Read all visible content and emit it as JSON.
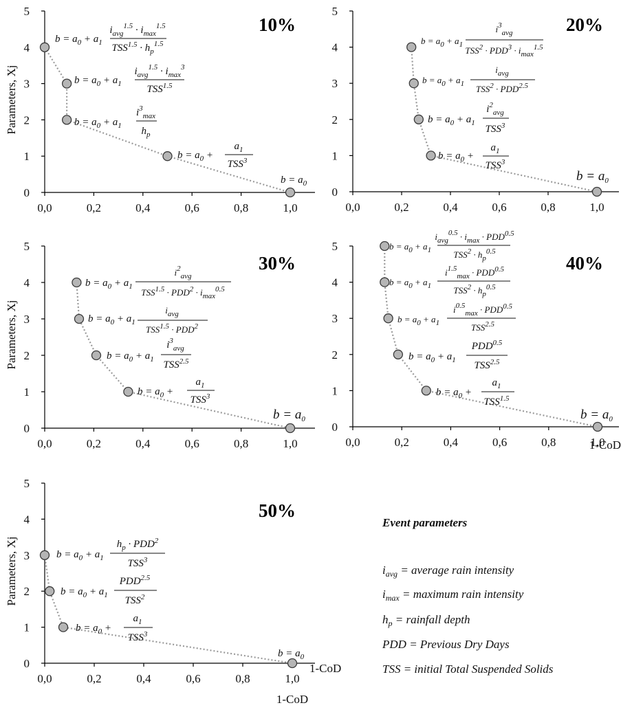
{
  "chart_data": [
    {
      "type": "line",
      "panel": "10%",
      "ylabel": "Parameters, Xj",
      "xlabel": "",
      "xlim": [
        0,
        1.05
      ],
      "ylim": [
        0,
        5
      ],
      "xticks": [
        "0,0",
        "0,2",
        "0,4",
        "0,6",
        "0,8",
        "1,0"
      ],
      "yticks": [
        "0",
        "1",
        "2",
        "3",
        "4",
        "5"
      ],
      "points": [
        {
          "x": 0.0,
          "y": 4,
          "equation": "b = a0 + a1 · i_avg^1.5 · i_max^1.5 / (TSS^1.5 · h_p^1.5)"
        },
        {
          "x": 0.09,
          "y": 3,
          "equation": "b = a0 + a1 · i_avg^1.5 · i_max^3 / TSS^1.5"
        },
        {
          "x": 0.09,
          "y": 2,
          "equation": "b = a0 + a1 · i_max^3 / h_p"
        },
        {
          "x": 0.5,
          "y": 1,
          "equation": "b = a0 + a1 / TSS^3"
        },
        {
          "x": 1.0,
          "y": 0,
          "equation": "b = a0"
        }
      ]
    },
    {
      "type": "line",
      "panel": "20%",
      "ylabel": "",
      "xlabel": "",
      "xlim": [
        0,
        1.05
      ],
      "ylim": [
        0,
        5
      ],
      "xticks": [
        "0,0",
        "0,2",
        "0,4",
        "0,6",
        "0,8",
        "1,0"
      ],
      "yticks": [
        "0",
        "1",
        "2",
        "3",
        "4",
        "5"
      ],
      "points": [
        {
          "x": 0.24,
          "y": 4,
          "equation": "b = a0 + a1 · i_avg^3 / (TSS^2 · PDD^3 · i_max^1.5)"
        },
        {
          "x": 0.25,
          "y": 3,
          "equation": "b = a0 + a1 · i_avg / (TSS^2 · PDD^2.5)"
        },
        {
          "x": 0.27,
          "y": 2,
          "equation": "b = a0 + a1 · i_avg^2 / TSS^3"
        },
        {
          "x": 0.32,
          "y": 1,
          "equation": "b = a0 + a1 / TSS^3"
        },
        {
          "x": 1.0,
          "y": 0,
          "equation": "b = a0"
        }
      ]
    },
    {
      "type": "line",
      "panel": "30%",
      "ylabel": "Parameters, Xj",
      "xlabel": "",
      "xlim": [
        0,
        1.05
      ],
      "ylim": [
        0,
        5
      ],
      "xticks": [
        "0,0",
        "0,2",
        "0,4",
        "0,6",
        "0,8",
        "1,0"
      ],
      "yticks": [
        "0",
        "1",
        "2",
        "3",
        "4",
        "5"
      ],
      "points": [
        {
          "x": 0.13,
          "y": 4,
          "equation": "b = a0 + a1 · i_avg^2 / (TSS^1.5 · PDD^2 · i_max^0.5)"
        },
        {
          "x": 0.14,
          "y": 3,
          "equation": "b = a0 + a1 · i_avg / (TSS^1.5 · PDD^2)"
        },
        {
          "x": 0.21,
          "y": 2,
          "equation": "b = a0 + a1 · i_avg^3 / TSS^2.5"
        },
        {
          "x": 0.34,
          "y": 1,
          "equation": "b = a0 + a1 / TSS^3"
        },
        {
          "x": 1.0,
          "y": 0,
          "equation": "b = a0"
        }
      ]
    },
    {
      "type": "line",
      "panel": "40%",
      "ylabel": "",
      "xlabel": "1-CoD",
      "xlim": [
        0,
        1.05
      ],
      "ylim": [
        0,
        5
      ],
      "xticks": [
        "0,0",
        "0,2",
        "0,4",
        "0,6",
        "0,8",
        "1,0"
      ],
      "yticks": [
        "0",
        "1",
        "2",
        "3",
        "4",
        "5"
      ],
      "points": [
        {
          "x": 0.13,
          "y": 5,
          "equation": "b = a0 + a1 · i_avg^0.5 · i_max · PDD^0.5 / (TSS^2 · h_p^0.5)"
        },
        {
          "x": 0.13,
          "y": 4,
          "equation": "b = a0 + a1 · i_max^1.5 · PDD^0.5 / (TSS^2 · h_p^0.5)"
        },
        {
          "x": 0.145,
          "y": 3,
          "equation": "b = a0 + a1 · i_max^0.5 · PDD^0.5 / TSS^2.5"
        },
        {
          "x": 0.185,
          "y": 2,
          "equation": "b = a0 + a1 · PDD^0.5 / TSS^2.5"
        },
        {
          "x": 0.3,
          "y": 1,
          "equation": "b = a0 + a1 / TSS^1.5"
        },
        {
          "x": 1.0,
          "y": 0,
          "equation": "b = a0"
        }
      ]
    },
    {
      "type": "line",
      "panel": "50%",
      "ylabel": "Parameters, Xj",
      "xlabel": "1-CoD",
      "xlim": [
        0,
        1.05
      ],
      "ylim": [
        0,
        5
      ],
      "xticks": [
        "0,0",
        "0,2",
        "0,4",
        "0,6",
        "0,8",
        "1,0"
      ],
      "yticks": [
        "0",
        "1",
        "2",
        "3",
        "4",
        "5"
      ],
      "points": [
        {
          "x": 0.0,
          "y": 3,
          "equation": "b = a0 + a1 · h_p · PDD^2 / TSS^3"
        },
        {
          "x": 0.02,
          "y": 2,
          "equation": "b = a0 + a1 · PDD^2.5 / TSS^2"
        },
        {
          "x": 0.075,
          "y": 1,
          "equation": "b = a0 + a1 / TSS^3"
        },
        {
          "x": 1.0,
          "y": 0,
          "equation": "b = a0"
        }
      ]
    }
  ],
  "extra_axis_label": "1-CoD",
  "legend": {
    "title": "Event parameters",
    "items": [
      "i_avg = average rain intensity",
      "i_max = maximum rain intensity",
      "h_p = rainfall depth",
      "PDD = Previous Dry Days",
      "TSS = initial Total Suspended Solids"
    ]
  },
  "colors": {
    "marker_fill": "#b5b5b5",
    "marker_stroke": "#3a3a3a",
    "connector": "#9a9a9a"
  }
}
